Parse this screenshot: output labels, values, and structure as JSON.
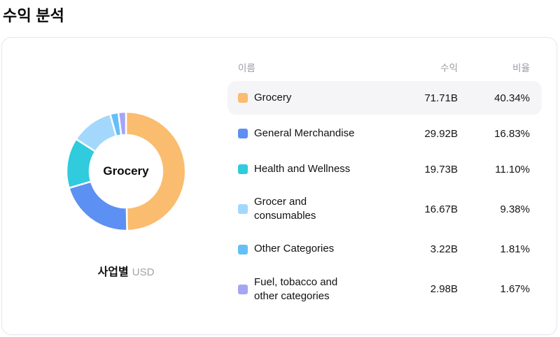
{
  "page": {
    "title": "수익 분석"
  },
  "caption": {
    "group_by": "사업별",
    "unit": "USD"
  },
  "table": {
    "headers": [
      "이름",
      "수익",
      "비율"
    ],
    "rows": [
      {
        "name": "Grocery",
        "revenue": "71.71B",
        "ratio": "40.34%",
        "color": "#FABC6E",
        "highlighted": true
      },
      {
        "name": "General Merchandise",
        "revenue": "29.92B",
        "ratio": "16.83%",
        "color": "#5C90F2",
        "highlighted": false
      },
      {
        "name": "Health and Wellness",
        "revenue": "19.73B",
        "ratio": "11.10%",
        "color": "#30CBDC",
        "highlighted": false
      },
      {
        "name": "Grocer and consumables",
        "revenue": "16.67B",
        "ratio": "9.38%",
        "color": "#A3D8FC",
        "highlighted": false
      },
      {
        "name": "Other Categories",
        "revenue": "3.22B",
        "ratio": "1.81%",
        "color": "#64BFF7",
        "highlighted": false
      },
      {
        "name": "Fuel, tobacco and other categories",
        "revenue": "2.98B",
        "ratio": "1.67%",
        "color": "#A5A5F6",
        "highlighted": false
      }
    ]
  },
  "chart_data": {
    "type": "pie",
    "donut": true,
    "title": "수익 분석",
    "center_label": "Grocery",
    "currency": "USD",
    "value_suffix": "B",
    "categories": [
      "Grocery",
      "General Merchandise",
      "Health and Wellness",
      "Grocer and consumables",
      "Other Categories",
      "Fuel, tobacco and other categories"
    ],
    "values": [
      71.71,
      29.92,
      19.73,
      16.67,
      3.22,
      2.98
    ],
    "percentages": [
      40.34,
      16.83,
      11.1,
      9.38,
      1.81,
      1.67
    ],
    "colors": [
      "#FABC6E",
      "#5C90F2",
      "#30CBDC",
      "#A3D8FC",
      "#64BFF7",
      "#A5A5F6"
    ],
    "start": "top",
    "direction": "clockwise",
    "legend_position": "right-table"
  }
}
